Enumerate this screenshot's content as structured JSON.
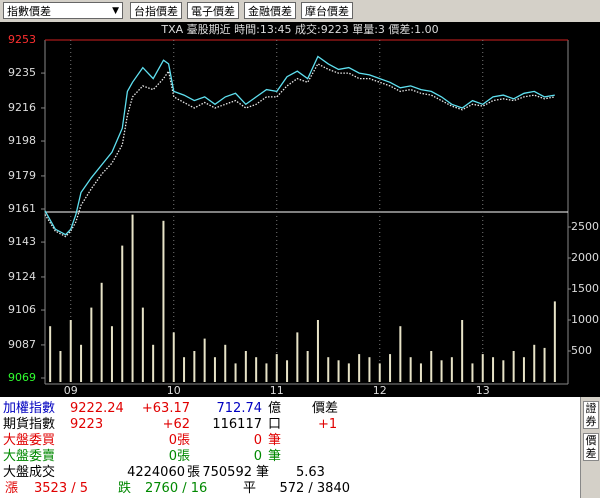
{
  "toolbar": {
    "dropdown": "指數價差",
    "buttons": [
      "台指價差",
      "電子價差",
      "金融價差",
      "摩台價差"
    ]
  },
  "chart_data": {
    "type": "line",
    "subtitle": "TXA  臺股期近 時間:13:45 成交:9223 單量:3  價差:1.00",
    "xlim": [
      8.75,
      13.75
    ],
    "xticks": [
      {
        "value": 9,
        "label": "09"
      },
      10,
      11,
      12,
      13
    ],
    "ylim": [
      9069,
      9253
    ],
    "yticks": [
      9253,
      9235,
      9216,
      9198,
      9179,
      9161,
      9143,
      9124,
      9106,
      9087,
      9069
    ],
    "y2lim": [
      0,
      2742
    ],
    "y2ticks": [
      500,
      1000,
      1500,
      2000,
      2500
    ],
    "series": [
      {
        "type": "line",
        "color": "#5fe0f0",
        "dashed": false,
        "x": [
          8.75,
          8.85,
          8.95,
          9.0,
          9.05,
          9.1,
          9.2,
          9.3,
          9.4,
          9.5,
          9.55,
          9.6,
          9.7,
          9.8,
          9.9,
          9.95,
          10.0,
          10.1,
          10.2,
          10.3,
          10.4,
          10.5,
          10.6,
          10.7,
          10.8,
          10.9,
          11.0,
          11.1,
          11.2,
          11.3,
          11.4,
          11.5,
          11.6,
          11.7,
          11.8,
          11.9,
          12.0,
          12.1,
          12.2,
          12.3,
          12.4,
          12.5,
          12.6,
          12.7,
          12.8,
          12.9,
          13.0,
          13.1,
          13.2,
          13.3,
          13.4,
          13.5,
          13.6,
          13.7
        ],
        "values": [
          9160,
          9150,
          9147,
          9150,
          9158,
          9170,
          9178,
          9185,
          9192,
          9205,
          9225,
          9230,
          9238,
          9232,
          9242,
          9240,
          9225,
          9223,
          9220,
          9222,
          9218,
          9222,
          9224,
          9218,
          9222,
          9226,
          9225,
          9233,
          9236,
          9232,
          9244,
          9240,
          9237,
          9238,
          9235,
          9234,
          9232,
          9230,
          9227,
          9228,
          9226,
          9225,
          9222,
          9218,
          9216,
          9220,
          9218,
          9222,
          9223,
          9221,
          9224,
          9225,
          9222,
          9223
        ]
      },
      {
        "type": "line",
        "color": "#e8e8e8",
        "dashed": true,
        "x": [
          8.75,
          8.85,
          8.95,
          9.0,
          9.05,
          9.1,
          9.2,
          9.3,
          9.4,
          9.5,
          9.55,
          9.6,
          9.7,
          9.8,
          9.9,
          9.95,
          10.0,
          10.1,
          10.2,
          10.3,
          10.4,
          10.5,
          10.6,
          10.7,
          10.8,
          10.9,
          11.0,
          11.1,
          11.2,
          11.3,
          11.4,
          11.5,
          11.6,
          11.7,
          11.8,
          11.9,
          12.0,
          12.1,
          12.2,
          12.3,
          12.4,
          12.5,
          12.6,
          12.7,
          12.8,
          12.9,
          13.0,
          13.1,
          13.2,
          13.3,
          13.4,
          13.5,
          13.6,
          13.7
        ],
        "values": [
          9158,
          9149,
          9146,
          9149,
          9154,
          9163,
          9172,
          9180,
          9186,
          9196,
          9212,
          9222,
          9228,
          9226,
          9232,
          9236,
          9222,
          9219,
          9216,
          9219,
          9216,
          9218,
          9220,
          9216,
          9218,
          9222,
          9222,
          9228,
          9232,
          9230,
          9240,
          9237,
          9235,
          9235,
          9232,
          9232,
          9230,
          9228,
          9225,
          9226,
          9224,
          9223,
          9220,
          9217,
          9215,
          9218,
          9217,
          9220,
          9221,
          9220,
          9222,
          9223,
          9221,
          9222
        ]
      },
      {
        "type": "bar",
        "axis": "y2",
        "color": "#e8e4c8",
        "x": [
          8.8,
          8.9,
          9.0,
          9.1,
          9.2,
          9.3,
          9.4,
          9.5,
          9.6,
          9.7,
          9.8,
          9.9,
          10.0,
          10.1,
          10.2,
          10.3,
          10.4,
          10.5,
          10.6,
          10.7,
          10.8,
          10.9,
          11.0,
          11.1,
          11.2,
          11.3,
          11.4,
          11.5,
          11.6,
          11.7,
          11.8,
          11.9,
          12.0,
          12.1,
          12.2,
          12.3,
          12.4,
          12.5,
          12.6,
          12.7,
          12.8,
          12.9,
          13.0,
          13.1,
          13.2,
          13.3,
          13.4,
          13.5,
          13.6,
          13.7
        ],
        "values": [
          900,
          500,
          1000,
          600,
          1200,
          1600,
          900,
          2200,
          2700,
          1200,
          600,
          2600,
          800,
          400,
          500,
          700,
          400,
          600,
          300,
          500,
          400,
          300,
          450,
          350,
          800,
          500,
          1000,
          400,
          350,
          300,
          450,
          400,
          300,
          450,
          900,
          400,
          300,
          500,
          350,
          400,
          1000,
          300,
          450,
          400,
          350,
          500,
          400,
          600,
          550,
          1300
        ]
      }
    ]
  },
  "panel": {
    "rows": [
      [
        "加權指數",
        "9222.24",
        "+63.17",
        "712.74",
        "億",
        "價差"
      ],
      [
        "期貨指數",
        "9223",
        "+62",
        "116117",
        "口",
        "+1"
      ],
      [
        "大盤委買",
        "0張",
        "0",
        "筆"
      ],
      [
        "大盤委賣",
        "0張",
        "0",
        "筆"
      ],
      [
        "大盤成交",
        "4224060",
        "張",
        "750592",
        "筆",
        "5.63"
      ],
      [
        "漲",
        "3523 / 5",
        "跌",
        "2760 / 16",
        "平",
        "572 / 3840"
      ]
    ],
    "tabs": [
      "證券",
      "價差"
    ]
  }
}
